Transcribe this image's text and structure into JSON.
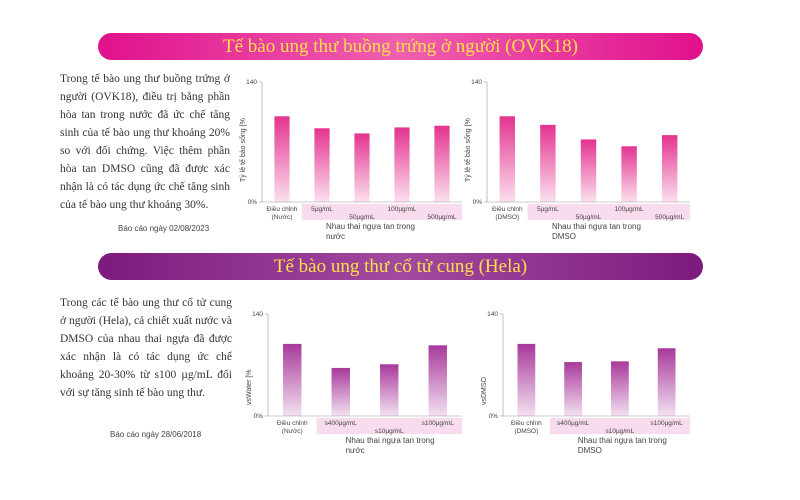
{
  "sections": [
    {
      "title": "Tế bào ung thư buồng trứng ở người (OVK18)",
      "body": "Trong tế bào ung thư buồng trứng ở người (OVK18), điều trị bằng phần hòa tan trong nước đã ức chế tăng sinh của tế bào ung thư khoảng 20% so với đối chứng. Việc thêm phần hòa tan DMSO cũng đã được xác nhận là có tác dụng ức chế tăng sinh của tế bào ung thư khoảng 30%.",
      "date": "Báo cáo ngày 02/08/2023"
    },
    {
      "title": "Tế bào ung thư cổ tử cung (Hela)",
      "body": "Trong các tế bào ung thư cổ tử cung ở người (Hela), cả chiết xuất nước và DMSO của nhau thai ngựa đã được xác nhận là có tác dụng ức chế khoảng 20-30% từ s100 µg/mL đối với sự tăng sinh tế bào ung thư.",
      "date": "Báo cáo ngày 28/06/2018"
    }
  ],
  "chart_data": [
    {
      "type": "bar",
      "ylabel": "Tỷ lệ tế bào sống [%",
      "group_label": "Nhau thai ngựa tan trong nước",
      "categories": [
        "Điều chỉnh (Nước)",
        "5µg/mL",
        "50µg/mL",
        "100µg/mL",
        "500µg/mL"
      ],
      "values": [
        100,
        86,
        80,
        87,
        89
      ],
      "color": "#e4338f",
      "ylim": [
        0,
        140
      ],
      "yticks": [
        {
          "value": 0,
          "label": "0%"
        },
        140
      ]
    },
    {
      "type": "bar",
      "ylabel": "Tỷ lệ tế bào sống [%",
      "group_label": "Nhau thai ngựa tan trong DMSO",
      "categories": [
        "Điều chỉnh (DMSO)",
        "5µg/mL",
        "50µg/mL",
        "100µg/mL",
        "500µg/mL"
      ],
      "values": [
        100,
        90,
        73,
        65,
        78
      ],
      "color": "#e4338f",
      "ylim": [
        0,
        140
      ],
      "yticks": [
        {
          "value": 0,
          "label": "0%"
        },
        140
      ]
    },
    {
      "type": "bar",
      "ylabel": "vsWater [%",
      "group_label": "Nhau thai ngựa tan trong nước",
      "categories": [
        "Điều chỉnh (Nước)",
        "s400µg/mL",
        "s10µg/mL",
        "s100µg/mL"
      ],
      "values": [
        99,
        66,
        71,
        97
      ],
      "color": "#a8399b",
      "ylim": [
        0,
        140
      ],
      "yticks": [
        {
          "value": 0,
          "label": "0%"
        },
        140
      ]
    },
    {
      "type": "bar",
      "ylabel": "vsDMSO",
      "group_label": "Nhau thai ngựa tan trong DMSO",
      "categories": [
        "Điều chỉnh (DMSO)",
        "s400µg/mL",
        "s10µg/mL",
        "s100µg/mL"
      ],
      "values": [
        99,
        74,
        75,
        93
      ],
      "color": "#a8399b",
      "ylim": [
        0,
        140
      ],
      "yticks": [
        {
          "value": 0,
          "label": "0%"
        },
        140
      ]
    }
  ]
}
